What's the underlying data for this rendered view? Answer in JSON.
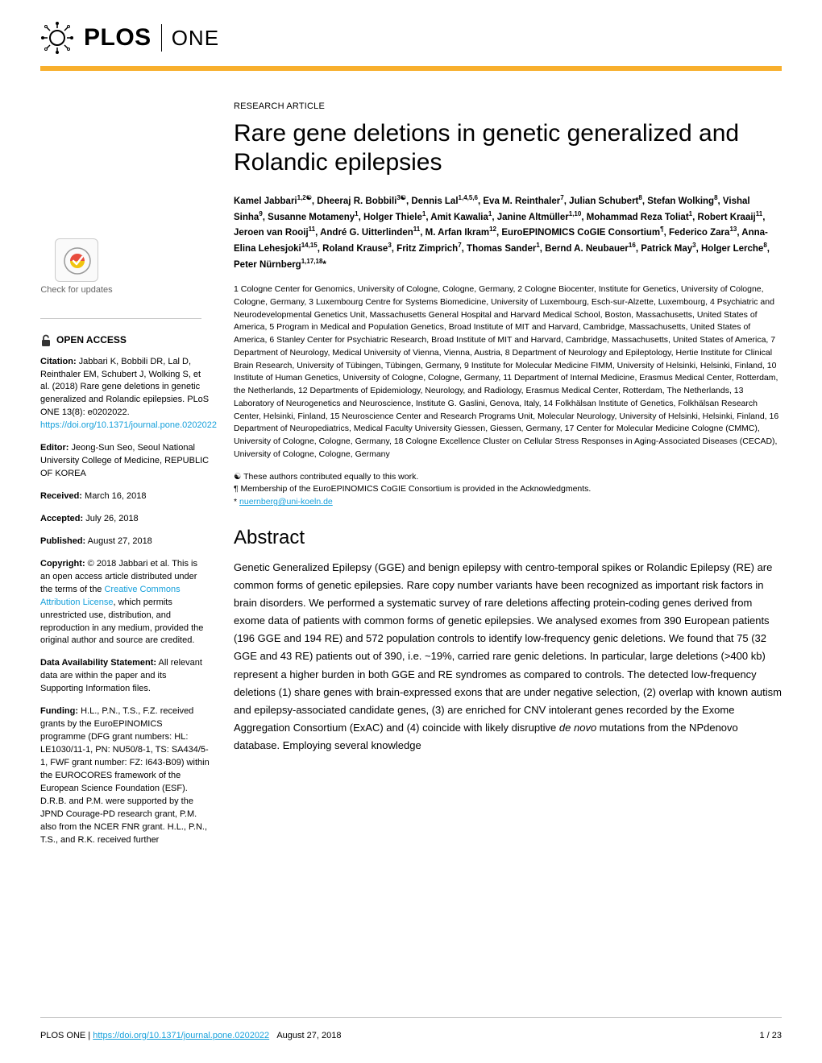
{
  "colors": {
    "accent_orange": "#f8af2d",
    "link_blue": "#16a0db",
    "text": "#000000",
    "border_gray": "#cccccc",
    "background": "#ffffff"
  },
  "header": {
    "brand": "PLOS",
    "journal": "ONE"
  },
  "article": {
    "type": "RESEARCH ARTICLE",
    "title": "Rare gene deletions in genetic generalized and Rolandic epilepsies",
    "authors_html": "Kamel Jabbari<sup>1,2☯</sup>, Dheeraj R. Bobbili<sup>3☯</sup>, Dennis Lal<sup>1,4,5,6</sup>, Eva M. Reinthaler<sup>7</sup>, Julian Schubert<sup>8</sup>, Stefan Wolking<sup>8</sup>, Vishal Sinha<sup>9</sup>, Susanne Motameny<sup>1</sup>, Holger Thiele<sup>1</sup>, Amit Kawalia<sup>1</sup>, Janine Altmüller<sup>1,10</sup>, Mohammad Reza Toliat<sup>1</sup>, Robert Kraaij<sup>11</sup>, Jeroen van Rooij<sup>11</sup>, André G. Uitterlinden<sup>11</sup>, M. Arfan Ikram<sup>12</sup>, EuroEPINOMICS CoGIE Consortium<sup>¶</sup>, Federico Zara<sup>13</sup>, Anna-Elina Lehesjoki<sup>14,15</sup>, Roland Krause<sup>3</sup>, Fritz Zimprich<sup>7</sup>, Thomas Sander<sup>1</sup>, Bernd A. Neubauer<sup>16</sup>, Patrick May<sup>3</sup>, Holger Lerche<sup>8</sup>, Peter Nürnberg<sup>1,17,18</sup>*",
    "affiliations": "1 Cologne Center for Genomics, University of Cologne, Cologne, Germany, 2 Cologne Biocenter, Institute for Genetics, University of Cologne, Cologne, Germany, 3 Luxembourg Centre for Systems Biomedicine, University of Luxembourg, Esch-sur-Alzette, Luxembourg, 4 Psychiatric and Neurodevelopmental Genetics Unit, Massachusetts General Hospital and Harvard Medical School, Boston, Massachusetts, United States of America, 5 Program in Medical and Population Genetics, Broad Institute of MIT and Harvard, Cambridge, Massachusetts, United States of America, 6 Stanley Center for Psychiatric Research, Broad Institute of MIT and Harvard, Cambridge, Massachusetts, United States of America, 7 Department of Neurology, Medical University of Vienna, Vienna, Austria, 8 Department of Neurology and Epileptology, Hertie Institute for Clinical Brain Research, University of Tübingen, Tübingen, Germany, 9 Institute for Molecular Medicine FIMM, University of Helsinki, Helsinki, Finland, 10 Institute of Human Genetics, University of Cologne, Cologne, Germany, 11 Department of Internal Medicine, Erasmus Medical Center, Rotterdam, the Netherlands, 12 Departments of Epidemiology, Neurology, and Radiology, Erasmus Medical Center, Rotterdam, The Netherlands, 13 Laboratory of Neurogenetics and Neuroscience, Institute G. Gaslini, Genova, Italy, 14 Folkhälsan Institute of Genetics, Folkhälsan Research Center, Helsinki, Finland, 15 Neuroscience Center and Research Programs Unit, Molecular Neurology, University of Helsinki, Helsinki, Finland, 16 Department of Neuropediatrics, Medical Faculty University Giessen, Giessen, Germany, 17 Center for Molecular Medicine Cologne (CMMC), University of Cologne, Cologne, Germany, 18 Cologne Excellence Cluster on Cellular Stress Responses in Aging-Associated Diseases (CECAD), University of Cologne, Cologne, Germany",
    "equal_contrib": "☯ These authors contributed equally to this work.",
    "consortium_note": "¶ Membership of the EuroEPINOMICS CoGIE Consortium is provided in the Acknowledgments.",
    "correspondence_prefix": "* ",
    "correspondence_email": "nuernberg@uni-koeln.de"
  },
  "abstract": {
    "heading": "Abstract",
    "text_html": "Genetic Generalized Epilepsy (GGE) and benign epilepsy with centro-temporal spikes or Rolandic Epilepsy (RE) are common forms of genetic epilepsies. Rare copy number variants have been recognized as important risk factors in brain disorders. We performed a systematic survey of rare deletions affecting protein-coding genes derived from exome data of patients with common forms of genetic epilepsies. We analysed exomes from 390 European patients (196 GGE and 194 RE) and 572 population controls to identify low-frequency genic deletions. We found that 75 (32 GGE and 43 RE) patients out of 390, i.e. ~19%, carried rare genic deletions. In particular, large deletions (>400 kb) represent a higher burden in both GGE and RE syndromes as compared to controls. The detected low-frequency deletions (1) share genes with brain-expressed exons that are under negative selection, (2) overlap with known autism and epilepsy-associated candidate genes, (3) are enriched for CNV intolerant genes recorded by the Exome Aggregation Consortium (ExAC) and (4) coincide with likely disruptive <em>de novo</em> mutations from the NPdenovo database. Employing several knowledge"
  },
  "sidebar": {
    "check_updates": "Check for updates",
    "open_access": "OPEN ACCESS",
    "citation": {
      "label": "Citation:",
      "text": " Jabbari K, Bobbili DR, Lal D, Reinthaler EM, Schubert J, Wolking S, et al. (2018) Rare gene deletions in genetic generalized and Rolandic epilepsies. PLoS ONE 13(8): e0202022. ",
      "doi_link": "https://doi.org/10.1371/journal.pone.0202022"
    },
    "editor": {
      "label": "Editor:",
      "text": " Jeong-Sun Seo, Seoul National University College of Medicine, REPUBLIC OF KOREA"
    },
    "received": {
      "label": "Received:",
      "text": " March 16, 2018"
    },
    "accepted": {
      "label": "Accepted:",
      "text": " July 26, 2018"
    },
    "published": {
      "label": "Published:",
      "text": " August 27, 2018"
    },
    "copyright": {
      "label": "Copyright:",
      "text_before": " © 2018 Jabbari et al. This is an open access article distributed under the terms of the ",
      "license_link": "Creative Commons Attribution License",
      "text_after": ", which permits unrestricted use, distribution, and reproduction in any medium, provided the original author and source are credited."
    },
    "data_avail": {
      "label": "Data Availability Statement:",
      "text": " All relevant data are within the paper and its Supporting Information files."
    },
    "funding": {
      "label": "Funding:",
      "text": " H.L., P.N., T.S., F.Z. received grants by the EuroEPINOMICS programme (DFG grant numbers: HL: LE1030/11-1, PN: NU50/8-1, TS: SA434/5-1, FWF grant number: FZ: I643-B09) within the EUROCORES framework of the European Science Foundation (ESF). D.R.B. and P.M. were supported by the JPND Courage-PD research grant, P.M. also from the NCER FNR grant. H.L., P.N., T.S., and R.K. received further"
    }
  },
  "footer": {
    "journal": "PLOS ONE | ",
    "doi": "https://doi.org/10.1371/journal.pone.0202022",
    "date": "August 27, 2018",
    "page": "1 / 23"
  }
}
